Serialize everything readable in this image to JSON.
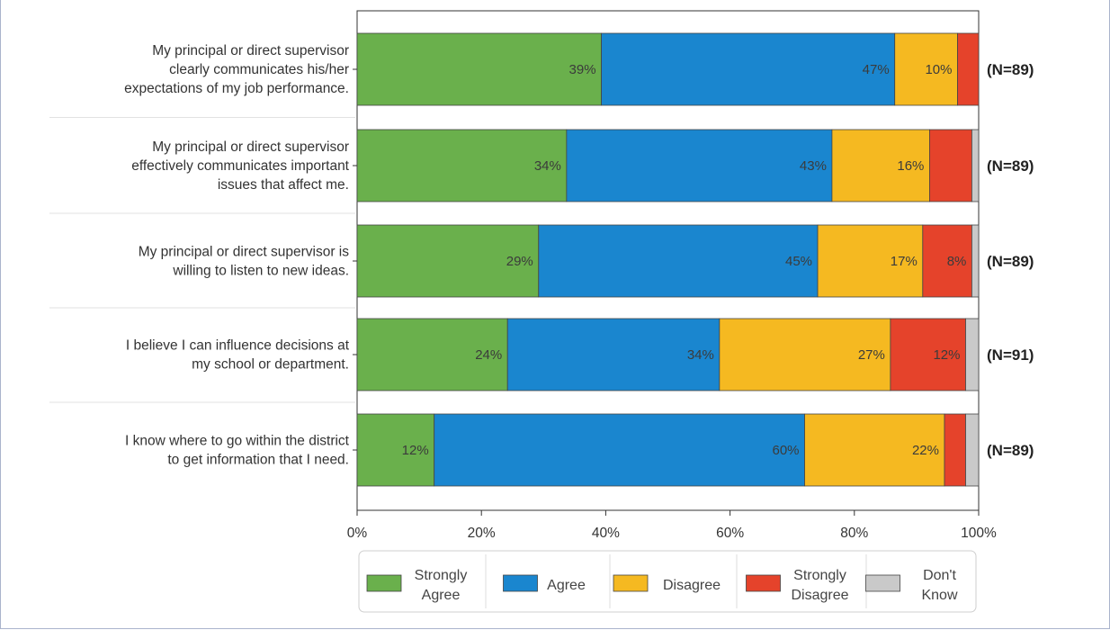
{
  "chart_data": {
    "type": "bar",
    "orientation": "horizontal",
    "stacked": true,
    "categories": [
      "My principal or direct supervisor clearly communicates his/her expectations of my job performance.",
      "My principal or direct supervisor effectively communicates important issues that affect me.",
      "My principal or direct supervisor is willing to listen to new ideas.",
      "I believe I can influence decisions at my school or department.",
      "I know where to go within the district to get information that I need."
    ],
    "category_lines": [
      [
        "My principal or direct supervisor",
        "clearly communicates his/her",
        "expectations of my job performance."
      ],
      [
        "My principal or direct supervisor",
        "effectively communicates important",
        "issues that affect me."
      ],
      [
        "My principal or direct supervisor is",
        "willing to listen to new ideas."
      ],
      [
        "I believe I can influence decisions at",
        "my school or department."
      ],
      [
        "I know where to go within the district",
        "to get information that I need."
      ]
    ],
    "n_labels": [
      "(N=89)",
      "(N=89)",
      "(N=89)",
      "(N=91)",
      "(N=89)"
    ],
    "series": [
      {
        "name": "Strongly Agree",
        "name_lines": [
          "Strongly",
          "Agree"
        ],
        "color": "#6ab04c",
        "values": [
          39.3,
          33.7,
          29.2,
          24.2,
          12.4
        ],
        "labels": [
          "39%",
          "34%",
          "29%",
          "24%",
          "12%"
        ]
      },
      {
        "name": "Agree",
        "name_lines": [
          "Agree"
        ],
        "color": "#1a86cf",
        "values": [
          47.2,
          42.7,
          44.9,
          34.1,
          59.6
        ],
        "labels": [
          "47%",
          "43%",
          "45%",
          "34%",
          "60%"
        ]
      },
      {
        "name": "Disagree",
        "name_lines": [
          "Disagree"
        ],
        "color": "#f5b921",
        "values": [
          10.1,
          15.7,
          16.9,
          27.5,
          22.5
        ],
        "labels": [
          "10%",
          "16%",
          "17%",
          "27%",
          "22%"
        ]
      },
      {
        "name": "Strongly Disagree",
        "name_lines": [
          "Strongly",
          "Disagree"
        ],
        "color": "#e5432b",
        "values": [
          3.4,
          6.8,
          7.9,
          12.1,
          3.4
        ],
        "labels": [
          "",
          "",
          "8%",
          "12%",
          ""
        ]
      },
      {
        "name": "Don't Know",
        "name_lines": [
          "Don't",
          "Know"
        ],
        "color": "#c9c9c9",
        "values": [
          0.0,
          1.1,
          1.1,
          2.1,
          2.1
        ],
        "labels": [
          "",
          "",
          "",
          "",
          ""
        ]
      }
    ],
    "xlim": [
      0,
      100
    ],
    "xticks": [
      0,
      20,
      40,
      60,
      80,
      100
    ],
    "xtick_labels": [
      "0%",
      "20%",
      "40%",
      "60%",
      "80%",
      "100%"
    ],
    "grid": false,
    "legend_position": "bottom"
  }
}
